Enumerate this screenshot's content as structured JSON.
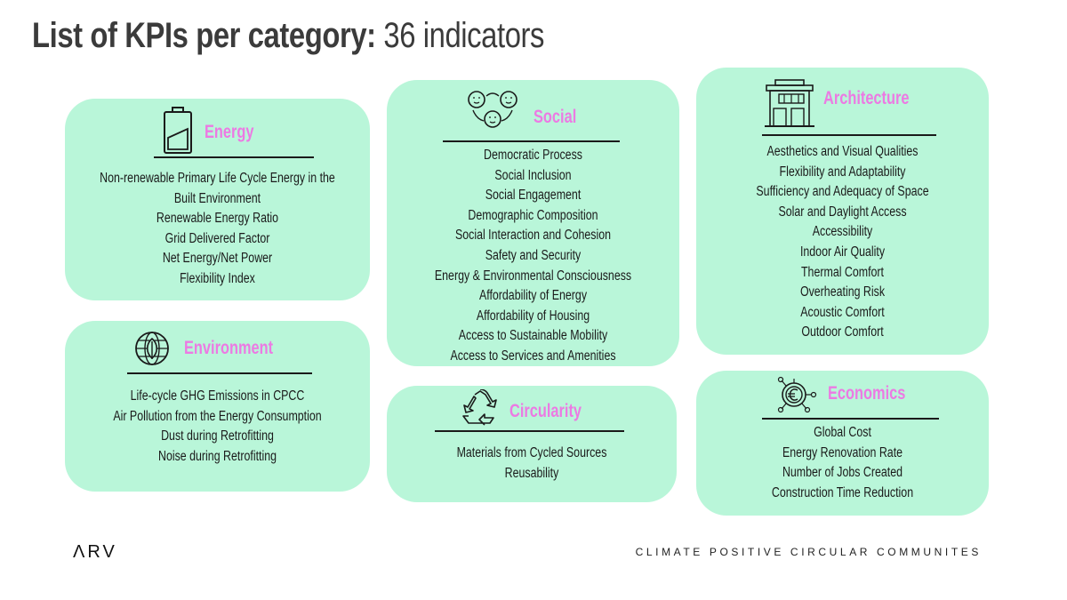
{
  "title": {
    "bold": "List of KPIs per category:",
    "light": "36 indicators"
  },
  "categories": {
    "energy": {
      "title": "Energy",
      "icon": "battery-icon",
      "items": [
        "Non-renewable Primary Life Cycle Energy in the",
        "Built Environment",
        "Renewable Energy Ratio",
        "Grid Delivered Factor",
        "Net Energy/Net Power",
        "Flexibility Index"
      ]
    },
    "environment": {
      "title": "Environment",
      "icon": "globe-leaf-icon",
      "items": [
        "Life-cycle GHG Emissions in CPCC",
        "Air Pollution from the Energy Consumption",
        "Dust during Retrofitting",
        "Noise during Retrofitting"
      ]
    },
    "social": {
      "title": "Social",
      "icon": "people-icon",
      "items": [
        "Democratic Process",
        "Social Inclusion",
        "Social Engagement",
        "Demographic Composition",
        "Social Interaction and Cohesion",
        "Safety and Security",
        "Energy & Environmental Consciousness",
        "Affordability of Energy",
        "Affordability of Housing",
        "Access to Sustainable Mobility",
        "Access to Services and Amenities"
      ]
    },
    "circularity": {
      "title": "Circularity",
      "icon": "recycle-icon",
      "items": [
        "Materials from Cycled Sources",
        "Reusability"
      ]
    },
    "architecture": {
      "title": "Architecture",
      "icon": "building-icon",
      "items": [
        "Aesthetics and Visual Qualities",
        "Flexibility and Adaptability",
        "Sufficiency and Adequacy of Space",
        "Solar and Daylight Access",
        "Accessibility",
        "Indoor Air Quality",
        "Thermal Comfort",
        "Overheating Risk",
        "Acoustic Comfort",
        "Outdoor Comfort"
      ]
    },
    "economics": {
      "title": "Economics",
      "icon": "euro-coin-icon",
      "items": [
        "Global Cost",
        "Energy Renovation Rate",
        "Number of Jobs Created",
        "Construction Time Reduction"
      ]
    }
  },
  "footer": {
    "logo": "ΛRV",
    "tagline": "CLIMATE POSITIVE CIRCULAR COMMUNITES"
  },
  "colors": {
    "card_background": "#b9f6d9",
    "category_title": "#ec7ae3",
    "text": "#1a1a1a",
    "title": "#3b3b3b"
  }
}
